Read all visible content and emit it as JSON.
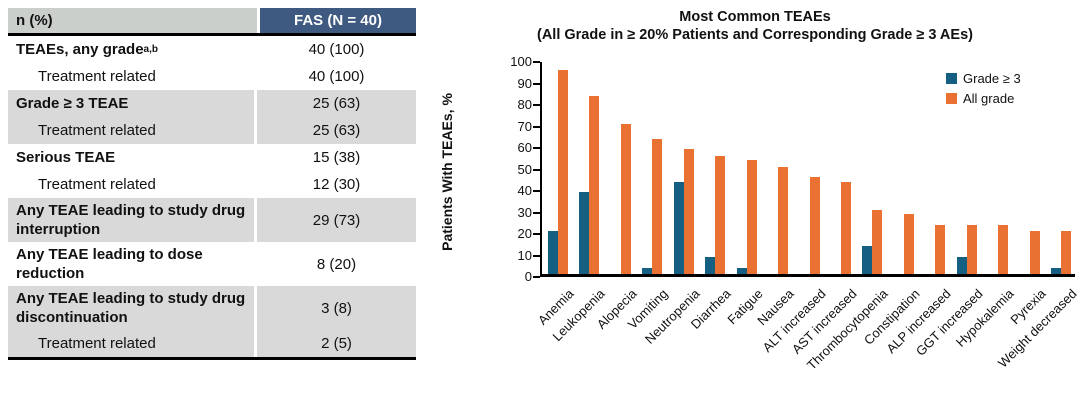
{
  "colors": {
    "header_navy": "#3E5A80",
    "header_gray": "#CBCFCC",
    "row_gray": "#D9D9D9",
    "bar_blue": "#156082",
    "bar_orange": "#E97132"
  },
  "table": {
    "header": {
      "col1": "n (%)",
      "col2": "FAS (N = 40)"
    },
    "rows": [
      {
        "label": "TEAEs, any grade",
        "sup": "a,b",
        "value": "40 (100)",
        "bold": true,
        "indent": false,
        "shaded": false
      },
      {
        "label": "Treatment related",
        "sup": "",
        "value": "40 (100)",
        "bold": false,
        "indent": true,
        "shaded": false
      },
      {
        "label": "Grade ≥ 3 TEAE",
        "sup": "",
        "value": "25 (63)",
        "bold": true,
        "indent": false,
        "shaded": true
      },
      {
        "label": "Treatment related",
        "sup": "",
        "value": "25 (63)",
        "bold": false,
        "indent": true,
        "shaded": true
      },
      {
        "label": "Serious TEAE",
        "sup": "",
        "value": "15 (38)",
        "bold": true,
        "indent": false,
        "shaded": false
      },
      {
        "label": "Treatment related",
        "sup": "",
        "value": "12 (30)",
        "bold": false,
        "indent": true,
        "shaded": false
      },
      {
        "label": "Any TEAE leading to study drug interruption",
        "sup": "",
        "value": "29 (73)",
        "bold": true,
        "indent": false,
        "shaded": true
      },
      {
        "label": "Any TEAE leading to dose reduction",
        "sup": "",
        "value": "8 (20)",
        "bold": true,
        "indent": false,
        "shaded": false
      },
      {
        "label": "Any TEAE leading to study drug discontinuation",
        "sup": "",
        "value": "3 (8)",
        "bold": true,
        "indent": false,
        "shaded": true
      },
      {
        "label": "Treatment related",
        "sup": "",
        "value": "2 (5)",
        "bold": false,
        "indent": true,
        "shaded": true
      }
    ]
  },
  "chart_data": {
    "type": "bar",
    "title": "Most Common TEAEs",
    "subtitle": "(All Grade in ≥ 20% Patients and Corresponding Grade ≥ 3 AEs)",
    "ylabel": "Patients With TEAEs, %",
    "xlabel": "",
    "ylim": [
      0,
      100
    ],
    "yticks": [
      0,
      10,
      20,
      30,
      40,
      50,
      60,
      70,
      80,
      90,
      100
    ],
    "grid": false,
    "legend_position": "upper right",
    "categories": [
      "Anemia",
      "Leukopenia",
      "Alopecia",
      "Vomiting",
      "Neutropenia",
      "Diarrhea",
      "Fatigue",
      "Nausea",
      "ALT increased",
      "AST increased",
      "Thrombocytopenia",
      "Constipation",
      "ALP increased",
      "GGT increased",
      "Hypokalemia",
      "Pyrexia",
      "Weight decreased"
    ],
    "series": [
      {
        "name": "Grade ≥ 3",
        "color": "#156082",
        "values": [
          20,
          38,
          0,
          3,
          43,
          8,
          3,
          0,
          0,
          0,
          13,
          0,
          0,
          8,
          0,
          0,
          3
        ]
      },
      {
        "name": "All grade",
        "color": "#E97132",
        "values": [
          95,
          83,
          70,
          63,
          58,
          55,
          53,
          50,
          45,
          43,
          30,
          28,
          23,
          23,
          23,
          20,
          20
        ]
      }
    ]
  }
}
